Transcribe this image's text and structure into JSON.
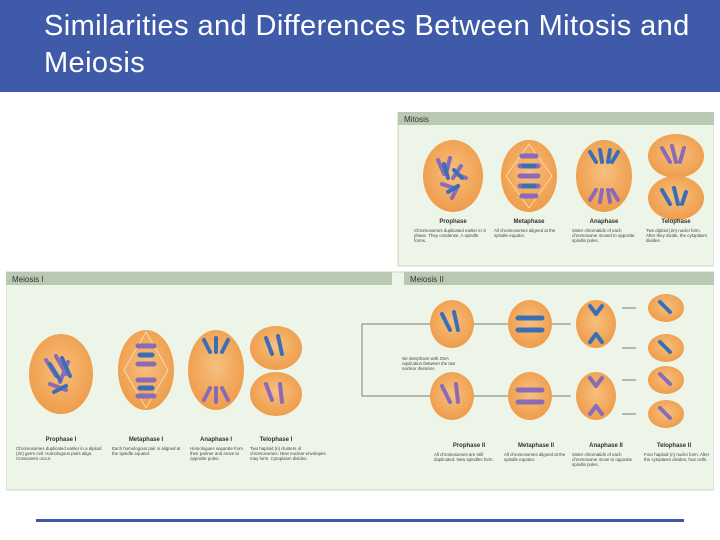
{
  "slide": {
    "title": "Similarities and Differences Between Mitosis and Meiosis"
  },
  "colors": {
    "header": "#3f5aa8",
    "cell": "#f2a55a",
    "chromosome_blue": "#3b6fb5",
    "chromosome_purple": "#8a6bb8",
    "panel_green": "#e8f1e1",
    "label_bar": "#b9c8b0"
  },
  "mitosis": {
    "label": "Mitosis",
    "phases": [
      {
        "name": "Prophase",
        "desc": "Chromosomes duplicated earlier in S phase. They condense. A spindle forms."
      },
      {
        "name": "Metaphase",
        "desc": "All chromosomes aligned at the spindle equator."
      },
      {
        "name": "Anaphase",
        "desc": "Sister chromatids of each chromosome moved to opposite spindle poles."
      },
      {
        "name": "Telophase",
        "desc": "Two diploid (2n) nuclei form. After they divide, the cytoplasm divides."
      }
    ]
  },
  "meiosis": {
    "label": "Meiosis I",
    "label2": "Meiosis II",
    "interphase_note": "No interphase with DNA replication between the two nuclear divisions",
    "phases_1": [
      {
        "name": "Prophase I",
        "desc": "Chromosomes duplicated earlier in a diploid (2n) germ cell. Homologous pairs align. Crossovers occur."
      },
      {
        "name": "Metaphase I",
        "desc": "Each homologous pair is aligned at the spindle equator."
      },
      {
        "name": "Anaphase I",
        "desc": "Homologues separate from their partner and move to opposite poles."
      },
      {
        "name": "Telophase I",
        "desc": "Two haploid (n) clusters of chromosomes. New nuclear envelopes may form. Cytoplasm divides."
      }
    ],
    "phases_2": [
      {
        "name": "Prophase II",
        "desc": "All chromosomes are still duplicated. New spindles form."
      },
      {
        "name": "Metaphase II",
        "desc": "All chromosomes aligned at the spindle equator."
      },
      {
        "name": "Anaphase II",
        "desc": "Sister chromatids of each chromosome move to opposite spindle poles."
      },
      {
        "name": "Telophase II",
        "desc": "Four haploid (n) nuclei form. After the cytoplasm divides, four cells."
      }
    ]
  }
}
